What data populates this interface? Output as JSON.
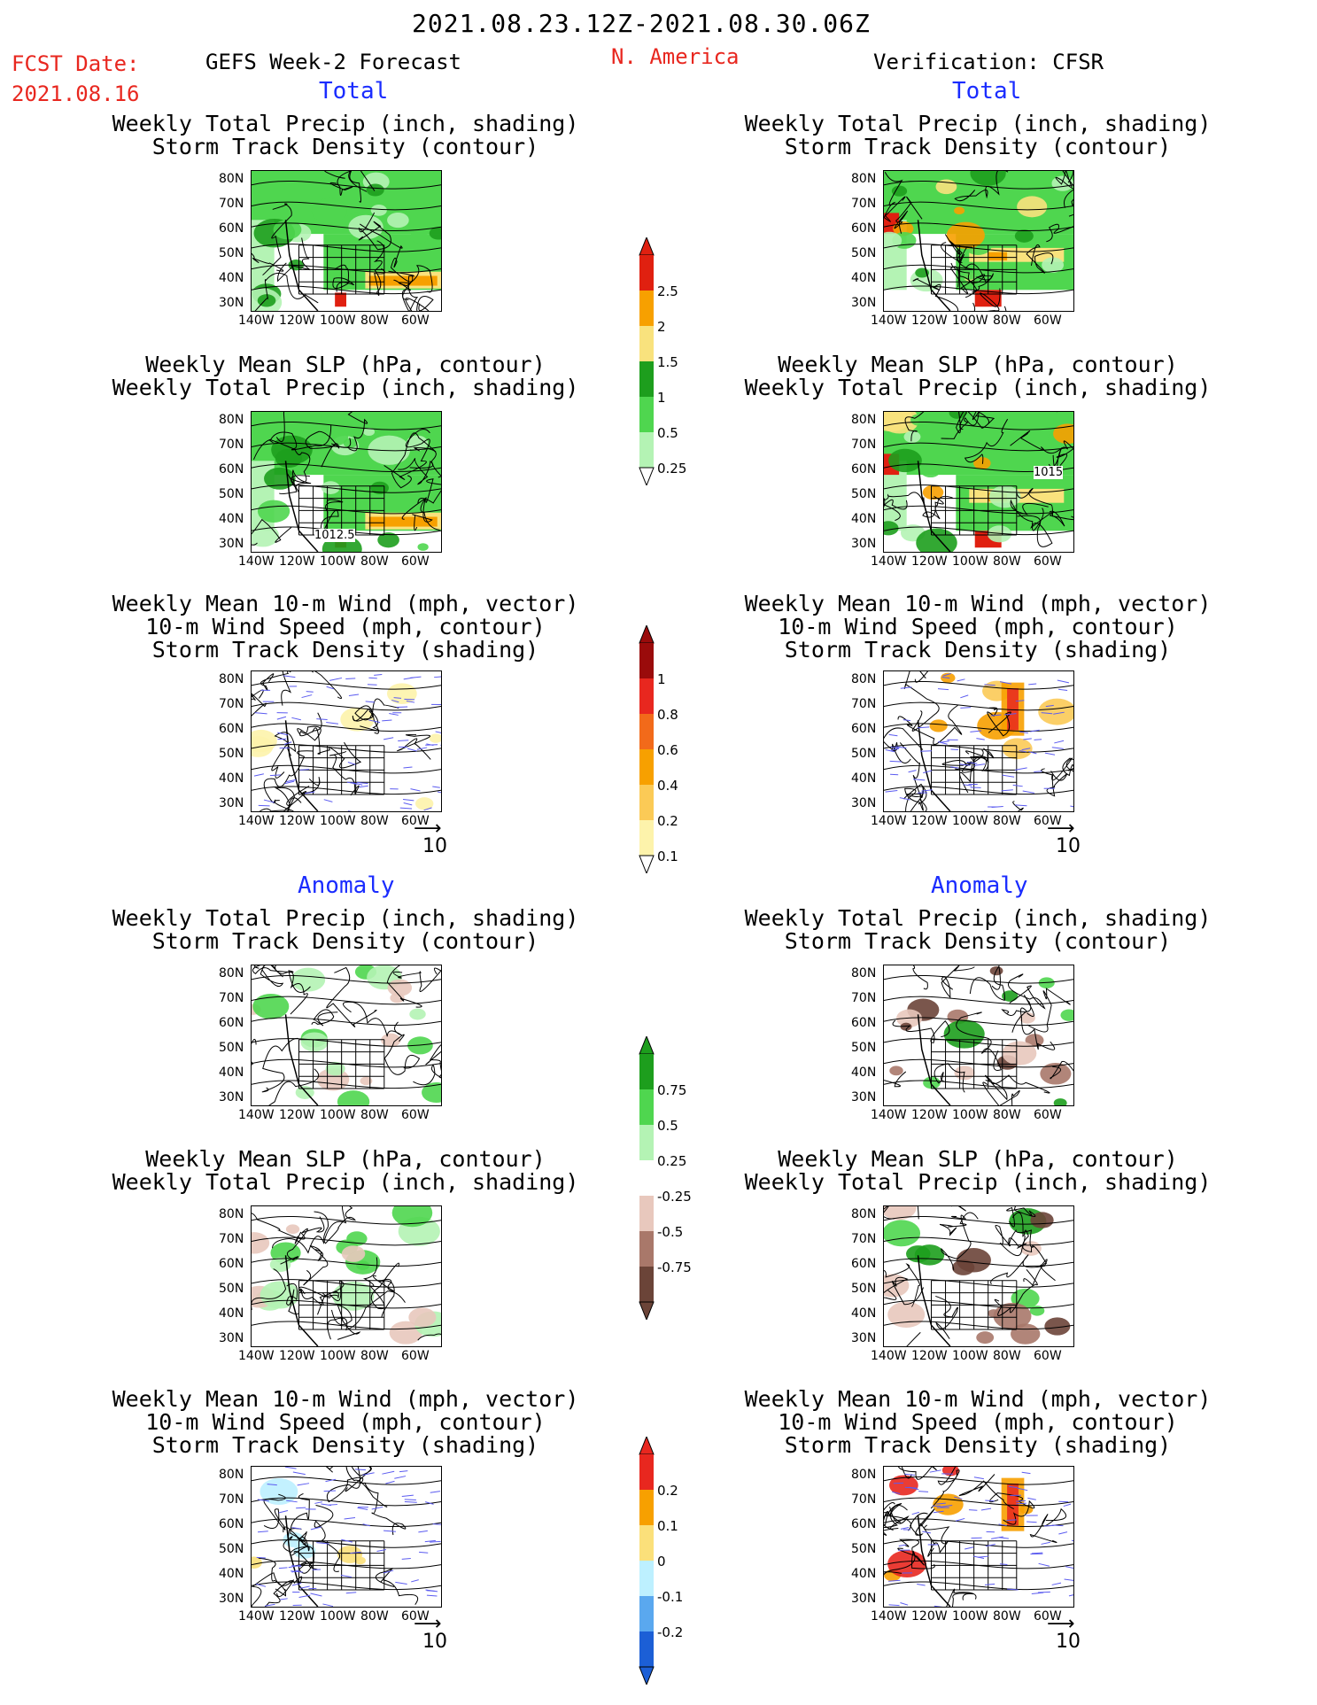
{
  "header": {
    "date_range": "2021.08.23.12Z-2021.08.30.06Z",
    "fcst_label": "FCST Date:",
    "fcst_date": "2021.08.16",
    "region": "N. America",
    "left_title": "GEFS Week-2 Forecast",
    "right_title": "Verification: CFSR"
  },
  "sections": {
    "total": "Total",
    "anomaly": "Anomaly"
  },
  "panel_titles": {
    "precip_track": [
      "Weekly Total Precip (inch, shading)",
      "Storm Track Density (contour)"
    ],
    "slp_precip": [
      "Weekly Mean SLP (hPa, contour)",
      "Weekly Total Precip (inch, shading)"
    ],
    "wind_track": [
      "Weekly Mean 10-m Wind (mph, vector)",
      "10-m Wind Speed (mph, contour)",
      "Storm Track Density (shading)"
    ]
  },
  "axes": {
    "lat_labels": [
      "80N",
      "70N",
      "60N",
      "50N",
      "40N",
      "30N"
    ],
    "lon_labels": [
      "140W",
      "120W",
      "100W",
      "80W",
      "60W"
    ]
  },
  "vector_scale": "10",
  "contour_labels": {
    "fcst_slp": "1012.5",
    "cfsr_slp": "1015"
  },
  "colorbars": {
    "precip_total": {
      "labels": [
        "2.5",
        "2",
        "1.5",
        "1",
        "0.5",
        "0.25"
      ],
      "colors": [
        "#e02010",
        "#f7a000",
        "#f9e27d",
        "#1d9e1d",
        "#4fd64f",
        "#b4f3b4"
      ]
    },
    "track_total": {
      "labels": [
        "1",
        "0.8",
        "0.6",
        "0.4",
        "0.2",
        "0.1"
      ],
      "colors": [
        "#9a0b0b",
        "#e8271f",
        "#f26a1a",
        "#f7a000",
        "#fbca56",
        "#fdf3ab"
      ]
    },
    "precip_anom": {
      "labels": [
        "0.75",
        "0.5",
        "0.25",
        "-0.25",
        "-0.5",
        "-0.75"
      ],
      "colors": [
        "#1d9e1d",
        "#4fd64f",
        "#b4f3b4",
        "#ffffff",
        "#e8c8bd",
        "#a9786a",
        "#6b4438"
      ]
    },
    "track_anom": {
      "labels": [
        "0.2",
        "0.1",
        "0",
        "-0.1",
        "-0.2"
      ],
      "colors": [
        "#e8271f",
        "#f7a000",
        "#fbe07a",
        "#bdf0ff",
        "#5aa8ef",
        "#1c5fd6"
      ]
    }
  }
}
